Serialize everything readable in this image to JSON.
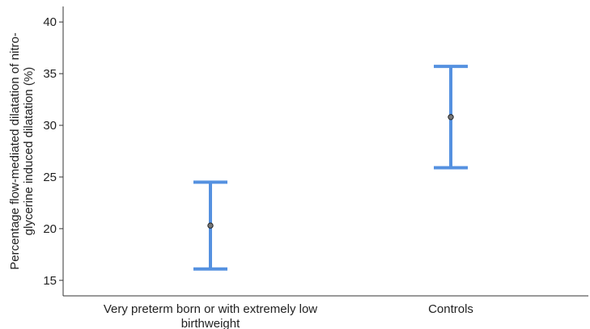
{
  "chart_data": {
    "type": "errorbar",
    "ylabel_lines": [
      "Percentage flow-mediated dilatation of nitro-",
      "glycerine induced dilatation (%)"
    ],
    "xlabel": "",
    "ylim": [
      13.5,
      41.5
    ],
    "yticks": [
      15,
      20,
      25,
      30,
      35,
      40
    ],
    "grid": false,
    "categories": [
      {
        "label_lines": [
          "Very preterm born or with extremely low",
          "birthweight"
        ],
        "mean": 20.3,
        "lower": 16.1,
        "upper": 24.5
      },
      {
        "label_lines": [
          "Controls"
        ],
        "mean": 30.8,
        "lower": 25.9,
        "upper": 35.7
      }
    ],
    "colors": {
      "errorbar": "#5591e0",
      "marker_fill": "#777777",
      "marker_stroke": "#222222",
      "axis": "#333333"
    }
  }
}
